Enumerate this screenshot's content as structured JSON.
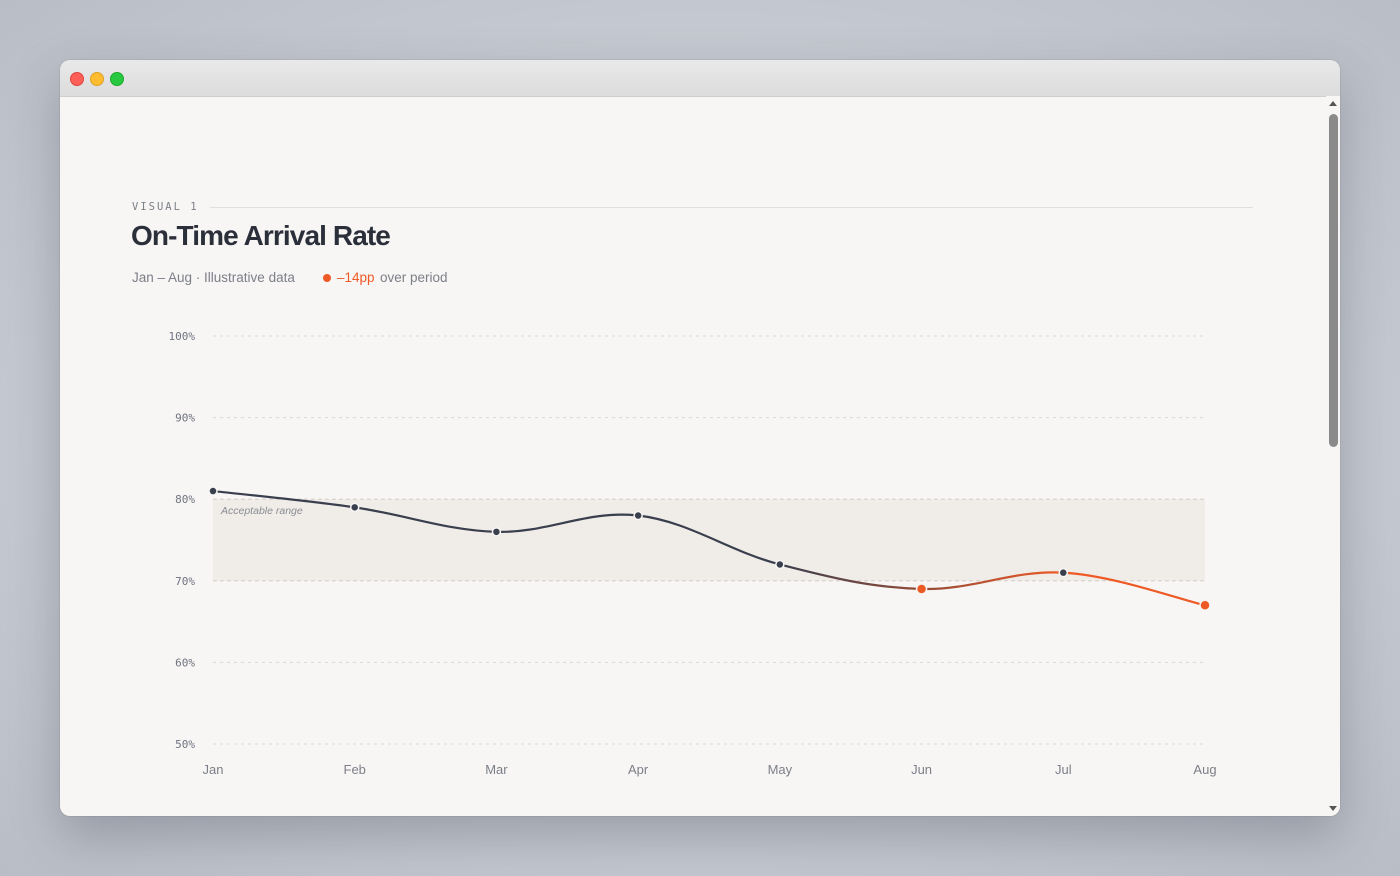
{
  "header": {
    "eyebrow": "VISUAL 1",
    "title": "On-Time Arrival Rate",
    "subtitle": "Jan – Aug · Illustrative data",
    "delta_value": "–14pp",
    "delta_label": "over period"
  },
  "colors": {
    "line": "#3a3f4e",
    "accent": "#ee5a25",
    "band": "#f0ece8",
    "grid": "#d9d9d9"
  },
  "chart_data": {
    "type": "line",
    "title": "On-Time Arrival Rate",
    "subtitle": "Jan – Aug · Illustrative data",
    "x": [
      "Jan",
      "Feb",
      "Mar",
      "Apr",
      "May",
      "Jun",
      "Jul",
      "Aug"
    ],
    "y": [
      81,
      79,
      76,
      78,
      72,
      69,
      71,
      67
    ],
    "ylim": [
      50,
      100
    ],
    "yticks": [
      100,
      90,
      80,
      70,
      60,
      50
    ],
    "ytick_labels": [
      "100%",
      "90%",
      "80%",
      "70%",
      "60%",
      "50%"
    ],
    "band": {
      "from": 70,
      "to": 80,
      "label": "Acceptable range"
    },
    "highlight_below": 70,
    "grid": true,
    "legend": "none"
  }
}
